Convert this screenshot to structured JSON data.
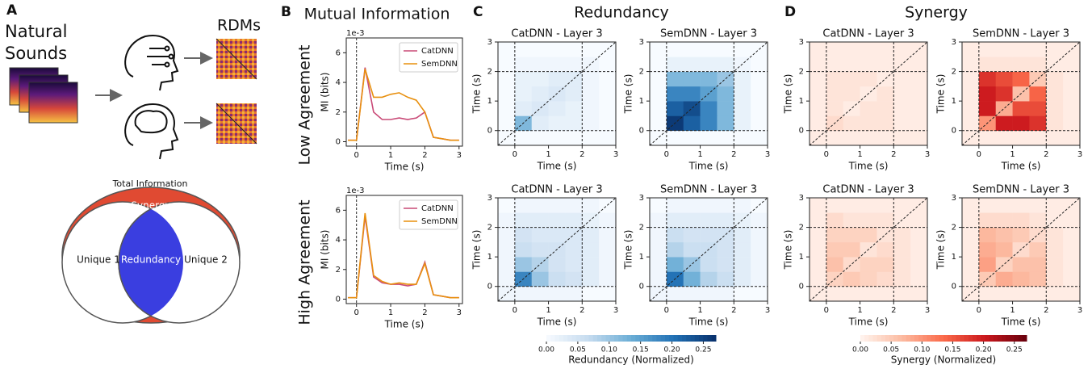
{
  "panel_labels": [
    "A",
    "B",
    "C",
    "D"
  ],
  "panel_a": {
    "sounds_label": "Natural Sounds",
    "rdms_label": "RDMs",
    "venn": {
      "title": "Total Information",
      "outer": "Synergy",
      "left": "Unique 1",
      "center": "Redundancy",
      "right": "Unique 2"
    }
  },
  "panel_titles": {
    "b": "Mutual Information",
    "c": "Redundancy",
    "d": "Synergy"
  },
  "row_labels": [
    "Low Agreement",
    "High Agreement"
  ],
  "chart_data": [
    {
      "type": "line",
      "x": [
        -0.25,
        0,
        0.25,
        0.5,
        0.75,
        1,
        1.25,
        1.5,
        1.75,
        2,
        2.25,
        2.5,
        2.75,
        3
      ],
      "series": [
        {
          "name": "CatDNN",
          "color": "#c94a77",
          "values": [
            0.1,
            0.1,
            5.0,
            2.0,
            1.5,
            1.5,
            1.6,
            1.5,
            1.6,
            2.0,
            0.3,
            0.2,
            0.1,
            0.1
          ]
        },
        {
          "name": "SemDNN",
          "color": "#e8900f",
          "values": [
            0.1,
            0.1,
            4.9,
            3.0,
            3.0,
            3.2,
            3.3,
            3.0,
            2.8,
            2.0,
            0.3,
            0.2,
            0.1,
            0.1
          ]
        }
      ],
      "xlim": [
        -0.3,
        3.1
      ],
      "xticks": [
        0,
        1,
        2,
        3
      ],
      "ylim": [
        -0.3,
        7
      ],
      "yticks": [
        0,
        2,
        4,
        6
      ],
      "xlabel": "Time (s)",
      "ylabel": "MI (bits)",
      "offset_label": "1e-3",
      "vlines": [
        0
      ],
      "legend": "upper right"
    },
    {
      "type": "line",
      "x": [
        -0.25,
        0,
        0.25,
        0.5,
        0.75,
        1,
        1.25,
        1.5,
        1.75,
        2,
        2.25,
        2.5,
        2.75,
        3
      ],
      "series": [
        {
          "name": "CatDNN",
          "color": "#c94a77",
          "values": [
            0.1,
            0.1,
            5.6,
            1.5,
            1.1,
            1.0,
            1.0,
            0.9,
            1.0,
            2.5,
            0.3,
            0.2,
            0.1,
            0.1
          ]
        },
        {
          "name": "SemDNN",
          "color": "#e8900f",
          "values": [
            0.1,
            0.1,
            5.8,
            1.6,
            1.2,
            1.0,
            1.1,
            1.0,
            1.0,
            2.4,
            0.3,
            0.2,
            0.1,
            0.1
          ]
        }
      ],
      "xlim": [
        -0.3,
        3.1
      ],
      "xticks": [
        0,
        1,
        2,
        3
      ],
      "ylim": [
        -0.3,
        7
      ],
      "yticks": [
        0,
        2,
        4,
        6
      ],
      "xlabel": "Time (s)",
      "ylabel": "MI (bits)",
      "offset_label": "1e-3",
      "vlines": [
        0
      ],
      "legend": "upper right"
    },
    {
      "type": "heatmap",
      "title": "CatDNN - Layer 3",
      "colormap": "Blues",
      "clim": [
        0,
        0.27
      ],
      "bins": [
        -0.5,
        0,
        0.5,
        1,
        1.5,
        2,
        2.5,
        3
      ],
      "xlim": [
        -0.5,
        3
      ],
      "ylim": [
        -0.5,
        3
      ],
      "xticks": [
        0,
        1,
        2,
        3
      ],
      "yticks": [
        0,
        1,
        2,
        3
      ],
      "xlabel": "Time (s)",
      "ylabel": "Time (s)",
      "lines": [
        0,
        2
      ],
      "values": [
        [
          0,
          0,
          0,
          0,
          0,
          0,
          0
        ],
        [
          0,
          0.12,
          0.03,
          0.02,
          0.02,
          0.01,
          0
        ],
        [
          0,
          0.03,
          0.04,
          0.03,
          0.02,
          0.01,
          0
        ],
        [
          0,
          0.02,
          0.03,
          0.04,
          0.03,
          0.01,
          0
        ],
        [
          0,
          0.02,
          0.02,
          0.03,
          0.03,
          0.01,
          0
        ],
        [
          0,
          0.01,
          0.01,
          0.01,
          0.01,
          0.01,
          0
        ],
        [
          0,
          0,
          0,
          0,
          0,
          0,
          0
        ]
      ]
    },
    {
      "type": "heatmap",
      "title": "SemDNN - Layer 3",
      "colormap": "Blues",
      "clim": [
        0,
        0.27
      ],
      "bins": [
        -0.5,
        0,
        0.5,
        1,
        1.5,
        2,
        2.5,
        3
      ],
      "xlim": [
        -0.5,
        3
      ],
      "ylim": [
        -0.5,
        3
      ],
      "xticks": [
        0,
        1,
        2,
        3
      ],
      "yticks": [
        0,
        1,
        2,
        3
      ],
      "xlabel": "Time (s)",
      "ylabel": "Time (s)",
      "lines": [
        0,
        2
      ],
      "values": [
        [
          0,
          0,
          0,
          0,
          0,
          0,
          0
        ],
        [
          0,
          0.26,
          0.22,
          0.18,
          0.12,
          0.02,
          0
        ],
        [
          0,
          0.22,
          0.24,
          0.18,
          0.12,
          0.02,
          0
        ],
        [
          0,
          0.18,
          0.18,
          0.15,
          0.12,
          0.02,
          0
        ],
        [
          0,
          0.12,
          0.12,
          0.12,
          0.1,
          0.02,
          0
        ],
        [
          0,
          0.02,
          0.02,
          0.02,
          0.02,
          0.01,
          0
        ],
        [
          0,
          0,
          0,
          0,
          0,
          0,
          0
        ]
      ]
    },
    {
      "type": "heatmap",
      "title": "CatDNN - Layer 3",
      "colormap": "Reds",
      "clim": [
        0,
        0.27
      ],
      "bins": [
        -0.5,
        0,
        0.5,
        1,
        1.5,
        2,
        2.5,
        3
      ],
      "xlim": [
        -0.5,
        3
      ],
      "ylim": [
        -0.5,
        3
      ],
      "xticks": [
        0,
        1,
        2,
        3
      ],
      "yticks": [
        0,
        1,
        2,
        3
      ],
      "xlabel": "Time (s)",
      "ylabel": "Time (s)",
      "lines": [
        0,
        2
      ],
      "values": [
        [
          0.01,
          0.01,
          0.01,
          0.01,
          0.01,
          0.01,
          0.01
        ],
        [
          0.01,
          0.03,
          0.02,
          0.02,
          0.02,
          0.01,
          0.01
        ],
        [
          0.01,
          0.02,
          0.01,
          0.02,
          0.02,
          0.01,
          0.01
        ],
        [
          0.01,
          0.02,
          0.02,
          0.01,
          0.02,
          0.01,
          0.01
        ],
        [
          0.01,
          0.02,
          0.02,
          0.02,
          0.01,
          0.01,
          0.01
        ],
        [
          0.01,
          0.01,
          0.01,
          0.01,
          0.01,
          0.01,
          0.01
        ],
        [
          0.01,
          0.01,
          0.01,
          0.01,
          0.01,
          0.01,
          0.01
        ]
      ]
    },
    {
      "type": "heatmap",
      "title": "SemDNN - Layer 3",
      "colormap": "Reds",
      "clim": [
        0,
        0.27
      ],
      "bins": [
        -0.5,
        0,
        0.5,
        1,
        1.5,
        2,
        2.5,
        3
      ],
      "xlim": [
        -0.5,
        3
      ],
      "ylim": [
        -0.5,
        3
      ],
      "xticks": [
        0,
        1,
        2,
        3
      ],
      "yticks": [
        0,
        1,
        2,
        3
      ],
      "xlabel": "Time (s)",
      "ylabel": "Time (s)",
      "lines": [
        0,
        2
      ],
      "values": [
        [
          0.01,
          0.01,
          0.01,
          0.01,
          0.01,
          0.01,
          0.01
        ],
        [
          0.01,
          0.1,
          0.2,
          0.2,
          0.18,
          0.02,
          0.01
        ],
        [
          0.01,
          0.2,
          0.08,
          0.16,
          0.16,
          0.02,
          0.01
        ],
        [
          0.01,
          0.2,
          0.18,
          0.06,
          0.14,
          0.02,
          0.01
        ],
        [
          0.01,
          0.18,
          0.16,
          0.14,
          0.05,
          0.02,
          0.01
        ],
        [
          0.01,
          0.02,
          0.02,
          0.02,
          0.02,
          0.01,
          0.01
        ],
        [
          0.01,
          0.01,
          0.01,
          0.01,
          0.01,
          0.01,
          0.01
        ]
      ]
    },
    {
      "type": "heatmap",
      "title": "CatDNN - Layer 3",
      "colormap": "Blues",
      "clim": [
        0,
        0.27
      ],
      "bins": [
        -0.5,
        0,
        0.5,
        1,
        1.5,
        2,
        2.5,
        3
      ],
      "xlim": [
        -0.5,
        3
      ],
      "ylim": [
        -0.5,
        3
      ],
      "xticks": [
        0,
        1,
        2,
        3
      ],
      "yticks": [
        0,
        1,
        2,
        3
      ],
      "xlabel": "Time (s)",
      "ylabel": "Time (s)",
      "lines": [
        0,
        2
      ],
      "values": [
        [
          0.01,
          0.01,
          0.01,
          0.01,
          0.01,
          0,
          0
        ],
        [
          0.01,
          0.18,
          0.1,
          0.06,
          0.05,
          0.03,
          0.01
        ],
        [
          0.01,
          0.1,
          0.08,
          0.05,
          0.04,
          0.03,
          0.01
        ],
        [
          0.01,
          0.06,
          0.05,
          0.05,
          0.04,
          0.03,
          0.01
        ],
        [
          0.01,
          0.05,
          0.04,
          0.04,
          0.04,
          0.03,
          0.01
        ],
        [
          0.01,
          0.03,
          0.03,
          0.03,
          0.03,
          0.02,
          0.01
        ],
        [
          0,
          0.01,
          0.01,
          0.01,
          0.01,
          0.01,
          0
        ]
      ]
    },
    {
      "type": "heatmap",
      "title": "SemDNN - Layer 3",
      "colormap": "Blues",
      "clim": [
        0,
        0.27
      ],
      "bins": [
        -0.5,
        0,
        0.5,
        1,
        1.5,
        2,
        2.5,
        3
      ],
      "xlim": [
        -0.5,
        3
      ],
      "ylim": [
        -0.5,
        3
      ],
      "xticks": [
        0,
        1,
        2,
        3
      ],
      "yticks": [
        0,
        1,
        2,
        3
      ],
      "xlabel": "Time (s)",
      "ylabel": "Time (s)",
      "lines": [
        0,
        2
      ],
      "values": [
        [
          0.01,
          0.01,
          0.01,
          0.01,
          0.01,
          0,
          0
        ],
        [
          0.01,
          0.2,
          0.13,
          0.08,
          0.06,
          0.03,
          0.01
        ],
        [
          0.01,
          0.13,
          0.1,
          0.06,
          0.05,
          0.03,
          0.01
        ],
        [
          0.01,
          0.08,
          0.06,
          0.06,
          0.05,
          0.03,
          0.01
        ],
        [
          0.01,
          0.06,
          0.05,
          0.05,
          0.05,
          0.03,
          0.01
        ],
        [
          0.01,
          0.03,
          0.03,
          0.03,
          0.03,
          0.02,
          0.01
        ],
        [
          0,
          0.01,
          0.01,
          0.01,
          0.01,
          0.01,
          0
        ]
      ]
    },
    {
      "type": "heatmap",
      "title": "CatDNN - Layer 3",
      "colormap": "Reds",
      "clim": [
        0,
        0.27
      ],
      "bins": [
        -0.5,
        0,
        0.5,
        1,
        1.5,
        2,
        2.5,
        3
      ],
      "xlim": [
        -0.5,
        3
      ],
      "ylim": [
        -0.5,
        3
      ],
      "xticks": [
        0,
        1,
        2,
        3
      ],
      "yticks": [
        0,
        1,
        2,
        3
      ],
      "xlabel": "Time (s)",
      "ylabel": "Time (s)",
      "lines": [
        0,
        2
      ],
      "values": [
        [
          0.01,
          0.01,
          0.01,
          0.01,
          0.01,
          0.01,
          0.01
        ],
        [
          0.01,
          0.04,
          0.05,
          0.04,
          0.03,
          0.02,
          0.01
        ],
        [
          0.01,
          0.06,
          0.03,
          0.04,
          0.04,
          0.02,
          0.01
        ],
        [
          0.01,
          0.05,
          0.05,
          0.02,
          0.03,
          0.02,
          0.01
        ],
        [
          0.01,
          0.04,
          0.04,
          0.04,
          0.02,
          0.02,
          0.01
        ],
        [
          0.01,
          0.03,
          0.02,
          0.02,
          0.02,
          0.01,
          0.01
        ],
        [
          0.01,
          0.01,
          0.01,
          0.01,
          0.01,
          0.01,
          0.01
        ]
      ]
    },
    {
      "type": "heatmap",
      "title": "SemDNN - Layer 3",
      "colormap": "Reds",
      "clim": [
        0,
        0.27
      ],
      "bins": [
        -0.5,
        0,
        0.5,
        1,
        1.5,
        2,
        2.5,
        3
      ],
      "xlim": [
        -0.5,
        3
      ],
      "ylim": [
        -0.5,
        3
      ],
      "xticks": [
        0,
        1,
        2,
        3
      ],
      "yticks": [
        0,
        1,
        2,
        3
      ],
      "xlabel": "Time (s)",
      "ylabel": "Time (s)",
      "lines": [
        0,
        2
      ],
      "values": [
        [
          0.01,
          0.01,
          0.01,
          0.01,
          0.01,
          0.01,
          0.01
        ],
        [
          0.01,
          0.05,
          0.08,
          0.07,
          0.06,
          0.02,
          0.01
        ],
        [
          0.01,
          0.09,
          0.04,
          0.06,
          0.06,
          0.02,
          0.01
        ],
        [
          0.01,
          0.08,
          0.07,
          0.03,
          0.05,
          0.02,
          0.01
        ],
        [
          0.01,
          0.07,
          0.06,
          0.05,
          0.03,
          0.02,
          0.01
        ],
        [
          0.01,
          0.03,
          0.03,
          0.03,
          0.02,
          0.01,
          0.01
        ],
        [
          0.01,
          0.01,
          0.01,
          0.01,
          0.01,
          0.01,
          0.01
        ]
      ]
    },
    {
      "type": "colorbar",
      "colormap": "Blues",
      "label": "Redundancy (Normalized)",
      "lim": [
        0,
        0.27
      ],
      "ticks": [
        {
          "value": 0,
          "label": "0.00"
        },
        {
          "value": 0.05,
          "label": "0.05"
        },
        {
          "value": 0.1,
          "label": "0.10"
        },
        {
          "value": 0.15,
          "label": "0.15"
        },
        {
          "value": 0.2,
          "label": "0.20"
        },
        {
          "value": 0.25,
          "label": "0.25"
        }
      ]
    },
    {
      "type": "colorbar",
      "colormap": "Reds",
      "label": "Synergy (Normalized)",
      "lim": [
        0,
        0.27
      ],
      "ticks": [
        {
          "value": 0,
          "label": "0.00"
        },
        {
          "value": 0.05,
          "label": "0.05"
        },
        {
          "value": 0.1,
          "label": "0.10"
        },
        {
          "value": 0.15,
          "label": "0.15"
        },
        {
          "value": 0.2,
          "label": "0.20"
        },
        {
          "value": 0.25,
          "label": "0.25"
        }
      ]
    }
  ]
}
